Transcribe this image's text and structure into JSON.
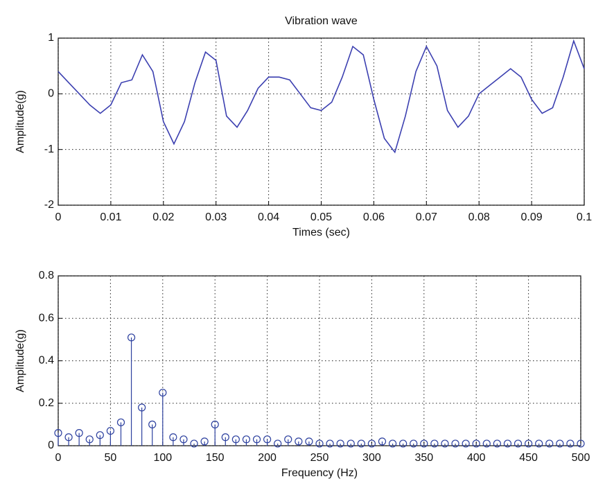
{
  "chart_data": [
    {
      "type": "line",
      "title": "Vibration wave",
      "xlabel": "Times (sec)",
      "ylabel": "Amplitude(g)",
      "color": "#3b3fb0",
      "x": [
        0,
        0.002,
        0.004,
        0.006,
        0.008,
        0.01,
        0.012,
        0.014,
        0.016,
        0.018,
        0.02,
        0.022,
        0.024,
        0.026,
        0.028,
        0.03,
        0.032,
        0.034,
        0.036,
        0.038,
        0.04,
        0.042,
        0.044,
        0.046,
        0.048,
        0.05,
        0.052,
        0.054,
        0.056,
        0.058,
        0.06,
        0.062,
        0.064,
        0.066,
        0.068,
        0.07,
        0.072,
        0.074,
        0.076,
        0.078,
        0.08,
        0.082,
        0.084,
        0.086,
        0.088,
        0.09,
        0.092,
        0.094,
        0.096,
        0.098,
        0.1
      ],
      "values": [
        0.4,
        0.2,
        0.0,
        -0.2,
        -0.35,
        -0.2,
        0.2,
        0.25,
        0.7,
        0.4,
        -0.5,
        -0.9,
        -0.5,
        0.2,
        0.75,
        0.6,
        -0.4,
        -0.6,
        -0.3,
        0.1,
        0.3,
        0.3,
        0.25,
        0.0,
        -0.25,
        -0.3,
        -0.15,
        0.3,
        0.85,
        0.7,
        -0.1,
        -0.8,
        -1.05,
        -0.4,
        0.4,
        0.85,
        0.5,
        -0.3,
        -0.6,
        -0.4,
        0.0,
        0.15,
        0.3,
        0.45,
        0.3,
        -0.1,
        -0.35,
        -0.25,
        0.3,
        0.95,
        0.45
      ],
      "xlim": [
        0,
        0.1
      ],
      "xticks": [
        0,
        0.01,
        0.02,
        0.03,
        0.04,
        0.05,
        0.06,
        0.07,
        0.08,
        0.09,
        0.1
      ],
      "ylim": [
        -2,
        1
      ],
      "yticks": [
        -2,
        -1,
        0,
        1
      ],
      "grid": true
    },
    {
      "type": "stem",
      "xlabel": "Frequency (Hz)",
      "ylabel": "Amplitude(g)",
      "color": "#2b3f9e",
      "x": [
        0,
        10,
        20,
        30,
        40,
        50,
        60,
        70,
        80,
        90,
        100,
        110,
        120,
        130,
        140,
        150,
        160,
        170,
        180,
        190,
        200,
        210,
        220,
        230,
        240,
        250,
        260,
        270,
        280,
        290,
        300,
        310,
        320,
        330,
        340,
        350,
        360,
        370,
        380,
        390,
        400,
        410,
        420,
        430,
        440,
        450,
        460,
        470,
        480,
        490,
        500
      ],
      "values": [
        0.06,
        0.04,
        0.06,
        0.03,
        0.05,
        0.07,
        0.11,
        0.51,
        0.18,
        0.1,
        0.25,
        0.04,
        0.03,
        0.01,
        0.02,
        0.1,
        0.04,
        0.03,
        0.03,
        0.03,
        0.03,
        0.01,
        0.03,
        0.02,
        0.02,
        0.01,
        0.01,
        0.01,
        0.01,
        0.01,
        0.01,
        0.02,
        0.01,
        0.01,
        0.01,
        0.01,
        0.01,
        0.01,
        0.01,
        0.01,
        0.01,
        0.01,
        0.01,
        0.01,
        0.01,
        0.01,
        0.01,
        0.01,
        0.01,
        0.01,
        0.01
      ],
      "xlim": [
        0,
        500
      ],
      "xticks": [
        0,
        50,
        100,
        150,
        200,
        250,
        300,
        350,
        400,
        450,
        500
      ],
      "ylim": [
        0,
        0.8
      ],
      "yticks": [
        0,
        0.2,
        0.4,
        0.6,
        0.8
      ],
      "grid": true
    }
  ]
}
